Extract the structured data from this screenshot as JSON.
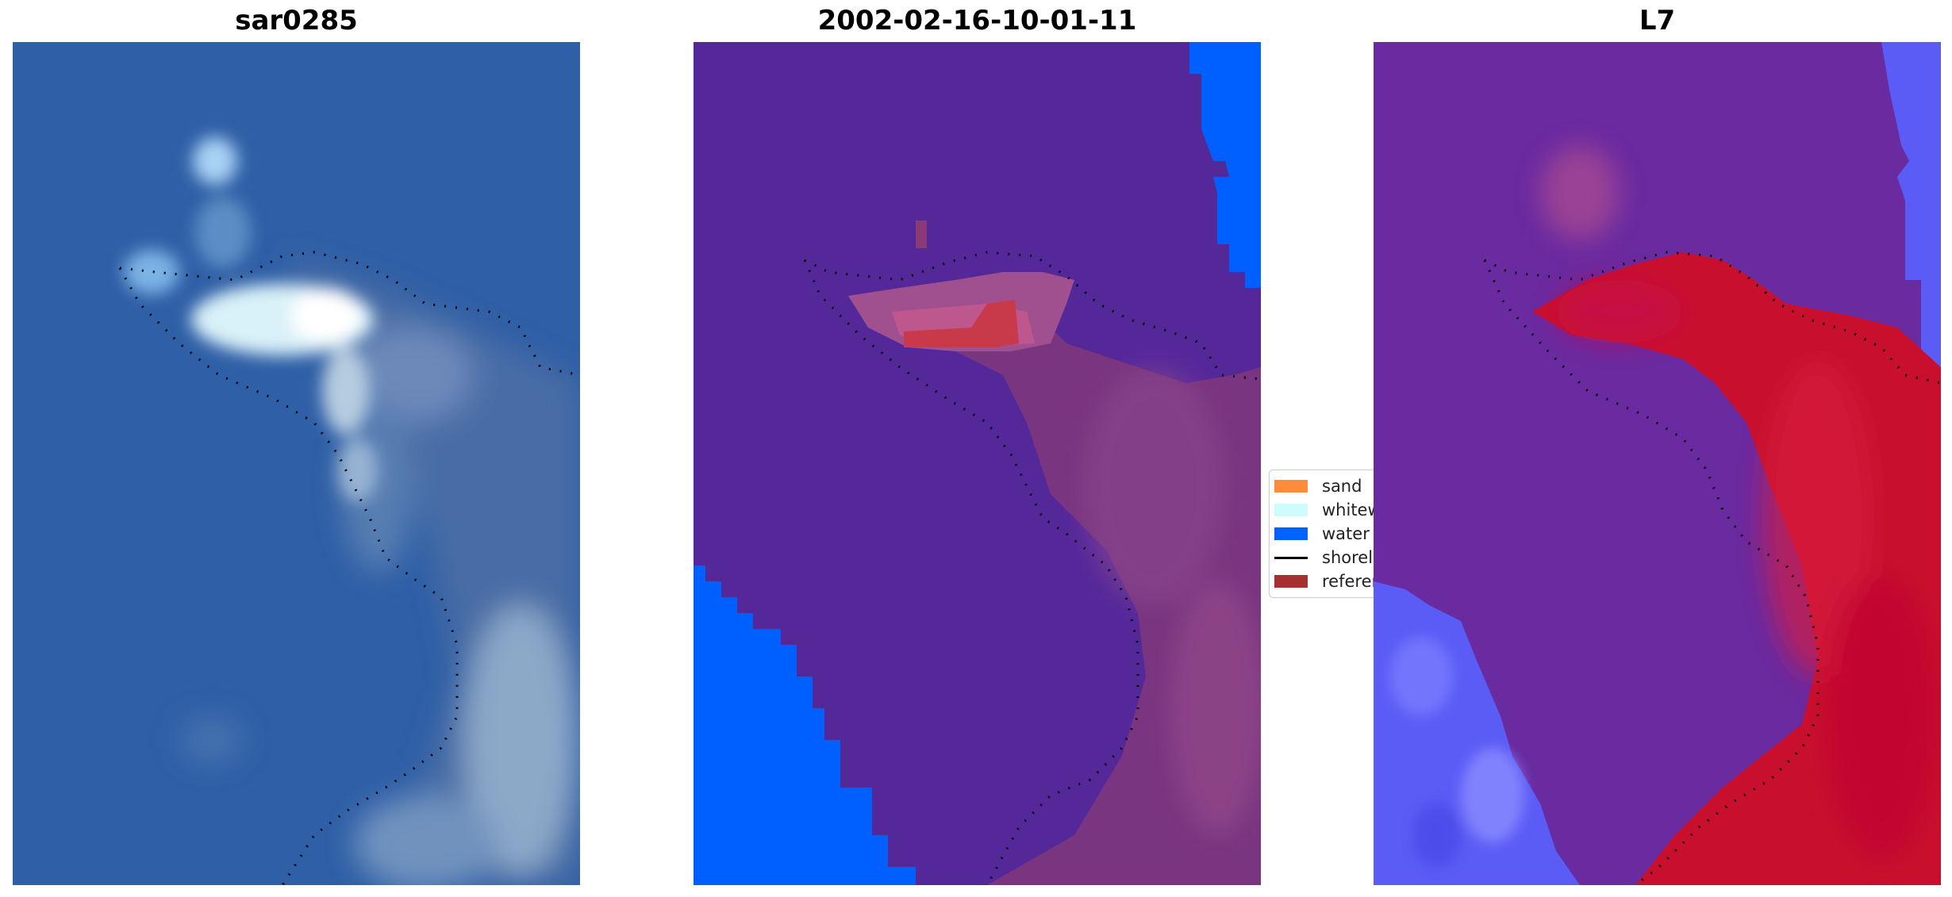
{
  "panels": [
    {
      "title": "sar0285",
      "layer": "RGB satellite image"
    },
    {
      "title": "2002-02-16-10-01-11",
      "layer": "classified image"
    },
    {
      "title": "L7",
      "layer": "MNDWI index"
    }
  ],
  "legend": {
    "items": [
      {
        "label": "sand",
        "color": "#ff8c3a",
        "kind": "patch"
      },
      {
        "label": "whitewater",
        "color": "#ccfcfc",
        "kind": "patch"
      },
      {
        "label": "water",
        "color": "#0063ff",
        "kind": "patch"
      },
      {
        "label": "shoreline",
        "color": "#000000",
        "kind": "line"
      },
      {
        "label": "reference",
        "color": "#a63030",
        "kind": "patch"
      }
    ]
  },
  "colors": {
    "sea_rgb": "#2f5fa6",
    "class_background": "#55289a",
    "class_water": "#0060ff",
    "class_land": "#7a3580",
    "index_low": "#6a2aa0",
    "index_high": "#c8102e",
    "index_water": "#5a5cf5"
  }
}
